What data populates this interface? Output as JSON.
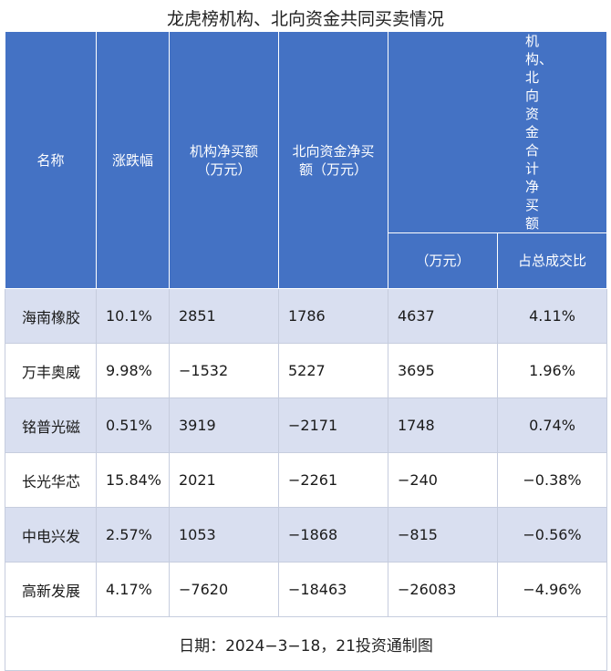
{
  "title": "龙虎榜机构、北向资金共同买卖情况",
  "headers": {
    "name": "名称",
    "change": "涨跌幅",
    "institution": "机构净买额（万元）",
    "northbound": "北向资金净买额（万元）",
    "combined_group": "机构、北向资金合计净买额",
    "combined_unit": "（万元）",
    "ratio": "占总成交比"
  },
  "rows": [
    {
      "name": "海南橡胶",
      "change": "10.1%",
      "institution": "2851",
      "northbound": "1786",
      "combined": "4637",
      "ratio": "4.11%"
    },
    {
      "name": "万丰奥威",
      "change": "9.98%",
      "institution": "−1532",
      "northbound": "5227",
      "combined": "3695",
      "ratio": "1.96%"
    },
    {
      "name": "铭普光磁",
      "change": "0.51%",
      "institution": "3919",
      "northbound": "−2171",
      "combined": "1748",
      "ratio": "0.74%"
    },
    {
      "name": "长光华芯",
      "change": "15.84%",
      "institution": "2021",
      "northbound": "−2261",
      "combined": "−240",
      "ratio": "−0.38%"
    },
    {
      "name": "中电兴发",
      "change": "2.57%",
      "institution": "1053",
      "northbound": "−1868",
      "combined": "−815",
      "ratio": "−0.56%"
    },
    {
      "name": "高新发展",
      "change": "4.17%",
      "institution": "−7620",
      "northbound": "−18463",
      "combined": "−26083",
      "ratio": "−4.96%"
    }
  ],
  "footer": "日期：2024−3−18，21投资通制图",
  "colors": {
    "header_bg": "#4472c4",
    "row_alt_bg": "#d9dff0"
  }
}
